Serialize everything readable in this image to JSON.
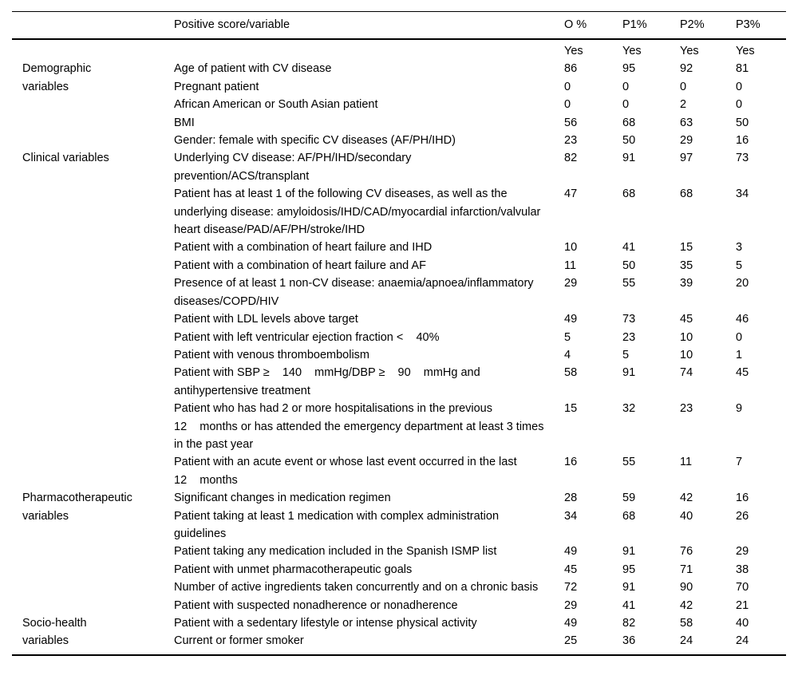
{
  "page": {
    "background": "#ffffff",
    "text_color": "#000000"
  },
  "table": {
    "header": {
      "corner": "",
      "variable_label": "Positive score/variable",
      "scores": [
        "O %",
        "P1%",
        "P2%",
        "P3%"
      ]
    },
    "subheader": [
      "Yes",
      "Yes",
      "Yes",
      "Yes"
    ],
    "groups": [
      {
        "category": "Demographic variables",
        "rows": [
          {
            "variable": "Age of patient with CV disease",
            "values": [
              "86",
              "95",
              "92",
              "81"
            ]
          },
          {
            "variable": "Pregnant patient",
            "values": [
              "0",
              "0",
              "0",
              "0"
            ]
          },
          {
            "variable": "African American or South Asian patient",
            "values": [
              "0",
              "0",
              "2",
              "0"
            ]
          },
          {
            "variable": "BMI",
            "values": [
              "56",
              "68",
              "63",
              "50"
            ]
          },
          {
            "variable": "Gender: female with specific CV diseases (AF/PH/IHD)",
            "values": [
              "23",
              "50",
              "29",
              "16"
            ]
          }
        ]
      },
      {
        "category": "Clinical variables",
        "rows": [
          {
            "variable": "Underlying CV disease: AF/PH/IHD/secondary prevention/ACS/transplant",
            "values": [
              "82",
              "91",
              "97",
              "73"
            ]
          },
          {
            "variable": "Patient has at least 1 of the following CV diseases, as well as the underlying disease: amyloidosis/IHD/CAD/myocardial infarction/valvular heart disease/PAD/AF/PH/stroke/IHD",
            "values": [
              "47",
              "68",
              "68",
              "34"
            ]
          },
          {
            "variable": "Patient with a combination of heart failure and IHD",
            "values": [
              "10",
              "41",
              "15",
              "3"
            ]
          },
          {
            "variable": "Patient with a combination of heart failure and AF",
            "values": [
              "11",
              "50",
              "35",
              "5"
            ]
          },
          {
            "variable": "Presence of at least 1 non-CV disease: anaemia/apnoea/inflammatory diseases/COPD/HIV",
            "values": [
              "29",
              "55",
              "39",
              "20"
            ]
          },
          {
            "variable": "Patient with LDL levels above target",
            "values": [
              "49",
              "73",
              "45",
              "46"
            ]
          },
          {
            "variable": "Patient with left ventricular ejection fraction <    40%",
            "values": [
              "5",
              "23",
              "10",
              "0"
            ]
          },
          {
            "variable": "Patient with venous thromboembolism",
            "values": [
              "4",
              "5",
              "10",
              "1"
            ]
          },
          {
            "variable": "Patient with SBP ≥    140    mmHg/DBP ≥    90    mmHg and antihypertensive treatment",
            "values": [
              "58",
              "91",
              "74",
              "45"
            ]
          },
          {
            "variable": "Patient who has had 2 or more hospitalisations in the previous 12    months or has attended the emergency department at least 3 times in the past year",
            "values": [
              "15",
              "32",
              "23",
              "9"
            ]
          },
          {
            "variable": "Patient with an acute event or whose last event occurred in the last 12    months",
            "values": [
              "16",
              "55",
              "11",
              "7"
            ]
          }
        ]
      },
      {
        "category": "Pharmacotherapeutic variables",
        "rows": [
          {
            "variable": "Significant changes in medication regimen",
            "values": [
              "28",
              "59",
              "42",
              "16"
            ]
          },
          {
            "variable": "Patient taking at least 1 medication with complex administration guidelines",
            "values": [
              "34",
              "68",
              "40",
              "26"
            ]
          },
          {
            "variable": "Patient taking any medication included in the Spanish ISMP list",
            "values": [
              "49",
              "91",
              "76",
              "29"
            ]
          },
          {
            "variable": "Patient with unmet pharmacotherapeutic goals",
            "values": [
              "45",
              "95",
              "71",
              "38"
            ]
          },
          {
            "variable": "Number of active ingredients taken concurrently and on a chronic basis",
            "values": [
              "72",
              "91",
              "90",
              "70"
            ]
          },
          {
            "variable": "Patient with suspected nonadherence or nonadherence",
            "values": [
              "29",
              "41",
              "42",
              "21"
            ]
          }
        ]
      },
      {
        "category": "Socio-health variables",
        "rows": [
          {
            "variable": "Patient with a sedentary lifestyle or intense physical activity",
            "values": [
              "49",
              "82",
              "58",
              "40"
            ]
          },
          {
            "variable": "Current or former smoker",
            "values": [
              "25",
              "36",
              "24",
              "24"
            ]
          }
        ]
      }
    ]
  }
}
